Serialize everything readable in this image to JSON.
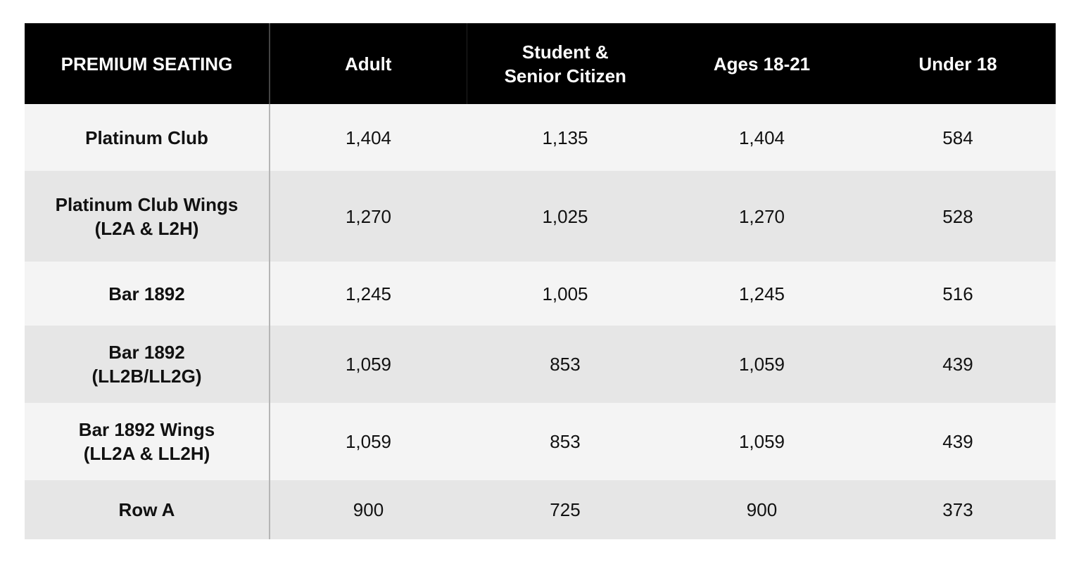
{
  "table": {
    "header": [
      "PREMIUM SEATING",
      "Adult",
      "Student &\nSenior Citizen",
      "Ages 18-21",
      "Under 18"
    ],
    "rows": [
      [
        "Platinum Club",
        "1,404",
        "1,135",
        "1,404",
        "584"
      ],
      [
        "Platinum Club Wings\n(L2A & L2H)",
        "1,270",
        "1,025",
        "1,270",
        "528"
      ],
      [
        "Bar 1892",
        "1,245",
        "1,005",
        "1,245",
        "516"
      ],
      [
        "Bar 1892\n(LL2B/LL2G)",
        "1,059",
        "853",
        "1,059",
        "439"
      ],
      [
        "Bar 1892 Wings\n(LL2A & LL2H)",
        "1,059",
        "853",
        "1,059",
        "439"
      ],
      [
        "Row A",
        "900",
        "725",
        "900",
        "373"
      ]
    ]
  }
}
